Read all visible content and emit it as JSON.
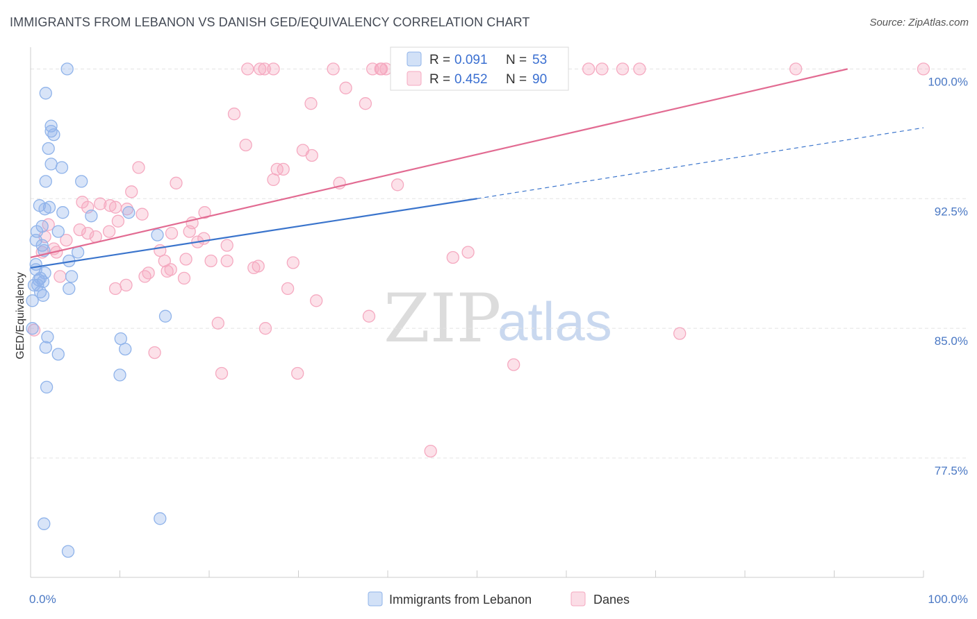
{
  "header": {
    "title": "IMMIGRANTS FROM LEBANON VS DANISH GED/EQUIVALENCY CORRELATION CHART",
    "source": "Source: ZipAtlas.com"
  },
  "watermark": {
    "zip": "ZIP",
    "atlas": "atlas"
  },
  "legend": {
    "rows": [
      {
        "r_label": "R =",
        "r_value": "0.091",
        "n_label": "N =",
        "n_value": "53",
        "color": "#8fb3ea"
      },
      {
        "r_label": "R =",
        "r_value": "0.452",
        "n_label": "N =",
        "n_value": "90",
        "color": "#f5a9c0"
      }
    ]
  },
  "bottom_legend": [
    {
      "label": "Immigrants from Lebanon",
      "color": "#8fb3ea"
    },
    {
      "label": "Danes",
      "color": "#f5a9c0"
    }
  ],
  "chart_data": {
    "type": "scatter",
    "title": "IMMIGRANTS FROM LEBANON VS DANISH GED/EQUIVALENCY CORRELATION CHART",
    "xlabel": "",
    "ylabel": "GED/Equivalency",
    "xlim": [
      0,
      100
    ],
    "ylim": [
      70.6,
      101.5
    ],
    "x_tick_labels": [
      "0.0%",
      "100.0%"
    ],
    "y_ticks": [
      77.5,
      85.0,
      92.5,
      100.0
    ],
    "y_tick_labels": [
      "77.5%",
      "85.0%",
      "92.5%",
      "100.0%"
    ],
    "grid": true,
    "legend_position": "top-center",
    "series": [
      {
        "name": "Immigrants from Lebanon",
        "color": "#8fb3ea",
        "line_color": "#3a74cc",
        "trend": {
          "x0": 0,
          "y0": 88.5,
          "x1": 50,
          "y1": 92.5,
          "dashed_to_x": 100,
          "dashed_to_y": 96.6
        },
        "points": [
          [
            4.1,
            100.0
          ],
          [
            1.7,
            98.6
          ],
          [
            2.3,
            96.7
          ],
          [
            2.3,
            96.4
          ],
          [
            2.6,
            96.2
          ],
          [
            2.0,
            95.4
          ],
          [
            2.3,
            94.5
          ],
          [
            3.5,
            94.3
          ],
          [
            1.7,
            93.5
          ],
          [
            5.7,
            93.5
          ],
          [
            1.0,
            92.1
          ],
          [
            2.1,
            92.0
          ],
          [
            1.6,
            91.9
          ],
          [
            3.6,
            91.7
          ],
          [
            6.8,
            91.5
          ],
          [
            11.0,
            91.7
          ],
          [
            1.3,
            90.9
          ],
          [
            0.7,
            90.6
          ],
          [
            3.1,
            90.6
          ],
          [
            14.2,
            90.4
          ],
          [
            0.6,
            90.1
          ],
          [
            1.3,
            89.8
          ],
          [
            1.5,
            89.5
          ],
          [
            5.3,
            89.4
          ],
          [
            4.3,
            88.9
          ],
          [
            0.6,
            88.7
          ],
          [
            0.6,
            88.4
          ],
          [
            1.6,
            88.2
          ],
          [
            4.6,
            88.0
          ],
          [
            1.1,
            87.9
          ],
          [
            0.9,
            87.8
          ],
          [
            1.4,
            87.7
          ],
          [
            0.4,
            87.5
          ],
          [
            0.8,
            87.5
          ],
          [
            4.3,
            87.3
          ],
          [
            1.1,
            87.1
          ],
          [
            1.4,
            86.9
          ],
          [
            0.2,
            86.6
          ],
          [
            15.1,
            85.7
          ],
          [
            0.2,
            85.0
          ],
          [
            1.9,
            84.5
          ],
          [
            10.1,
            84.4
          ],
          [
            1.7,
            83.9
          ],
          [
            10.6,
            83.8
          ],
          [
            3.1,
            83.5
          ],
          [
            10.0,
            82.3
          ],
          [
            1.8,
            81.6
          ],
          [
            14.5,
            74.0
          ],
          [
            1.5,
            73.7
          ],
          [
            4.2,
            72.1
          ]
        ]
      },
      {
        "name": "Danes",
        "color": "#f5a9c0",
        "line_color": "#e26b92",
        "trend": {
          "x0": 0,
          "y0": 89.1,
          "x1": 91.5,
          "y1": 100.0
        },
        "points": [
          [
            24.3,
            100.0
          ],
          [
            25.7,
            100.0
          ],
          [
            26.2,
            100.0
          ],
          [
            27.2,
            100.0
          ],
          [
            33.9,
            100.0
          ],
          [
            38.3,
            100.0
          ],
          [
            39.2,
            100.0
          ],
          [
            39.3,
            100.0
          ],
          [
            39.8,
            100.0
          ],
          [
            43.7,
            100.0
          ],
          [
            44.3,
            100.0
          ],
          [
            44.5,
            100.0
          ],
          [
            51.2,
            100.0
          ],
          [
            62.5,
            100.0
          ],
          [
            64.0,
            100.0
          ],
          [
            66.3,
            100.0
          ],
          [
            68.2,
            100.0
          ],
          [
            85.7,
            100.0
          ],
          [
            100.0,
            100.0
          ],
          [
            35.3,
            98.9
          ],
          [
            31.4,
            98.0
          ],
          [
            37.5,
            98.0
          ],
          [
            22.8,
            97.4
          ],
          [
            24.1,
            95.6
          ],
          [
            30.5,
            95.3
          ],
          [
            31.5,
            95.0
          ],
          [
            12.1,
            94.3
          ],
          [
            27.6,
            94.2
          ],
          [
            28.3,
            94.2
          ],
          [
            27.2,
            93.6
          ],
          [
            16.3,
            93.4
          ],
          [
            34.6,
            93.4
          ],
          [
            41.1,
            93.3
          ],
          [
            11.3,
            92.9
          ],
          [
            5.8,
            92.3
          ],
          [
            7.8,
            92.2
          ],
          [
            8.9,
            92.1
          ],
          [
            6.4,
            92.0
          ],
          [
            9.5,
            92.0
          ],
          [
            10.8,
            91.9
          ],
          [
            12.5,
            91.6
          ],
          [
            19.5,
            91.7
          ],
          [
            9.8,
            91.2
          ],
          [
            18.1,
            91.1
          ],
          [
            2.0,
            91.0
          ],
          [
            5.5,
            90.7
          ],
          [
            17.8,
            90.6
          ],
          [
            6.4,
            90.5
          ],
          [
            8.8,
            90.6
          ],
          [
            15.8,
            90.5
          ],
          [
            7.3,
            90.3
          ],
          [
            19.4,
            90.2
          ],
          [
            18.7,
            90.0
          ],
          [
            4.0,
            90.1
          ],
          [
            1.6,
            90.3
          ],
          [
            22.0,
            89.8
          ],
          [
            1.3,
            89.4
          ],
          [
            2.6,
            89.6
          ],
          [
            2.9,
            89.4
          ],
          [
            14.5,
            89.5
          ],
          [
            49.0,
            89.4
          ],
          [
            47.3,
            89.1
          ],
          [
            15.0,
            88.9
          ],
          [
            17.4,
            89.0
          ],
          [
            20.2,
            88.9
          ],
          [
            22.0,
            88.9
          ],
          [
            25.5,
            88.6
          ],
          [
            25.0,
            88.5
          ],
          [
            29.4,
            88.8
          ],
          [
            15.3,
            88.3
          ],
          [
            15.7,
            88.4
          ],
          [
            3.3,
            88.0
          ],
          [
            12.8,
            88.0
          ],
          [
            13.2,
            88.2
          ],
          [
            17.2,
            87.9
          ],
          [
            10.7,
            87.5
          ],
          [
            9.5,
            87.3
          ],
          [
            28.8,
            87.3
          ],
          [
            32.0,
            86.6
          ],
          [
            37.9,
            85.7
          ],
          [
            21.0,
            85.3
          ],
          [
            26.3,
            85.0
          ],
          [
            72.7,
            84.7
          ],
          [
            13.9,
            83.6
          ],
          [
            54.1,
            82.9
          ],
          [
            21.4,
            82.4
          ],
          [
            29.9,
            82.4
          ],
          [
            44.8,
            77.9
          ],
          [
            0.4,
            84.9
          ]
        ]
      }
    ]
  }
}
